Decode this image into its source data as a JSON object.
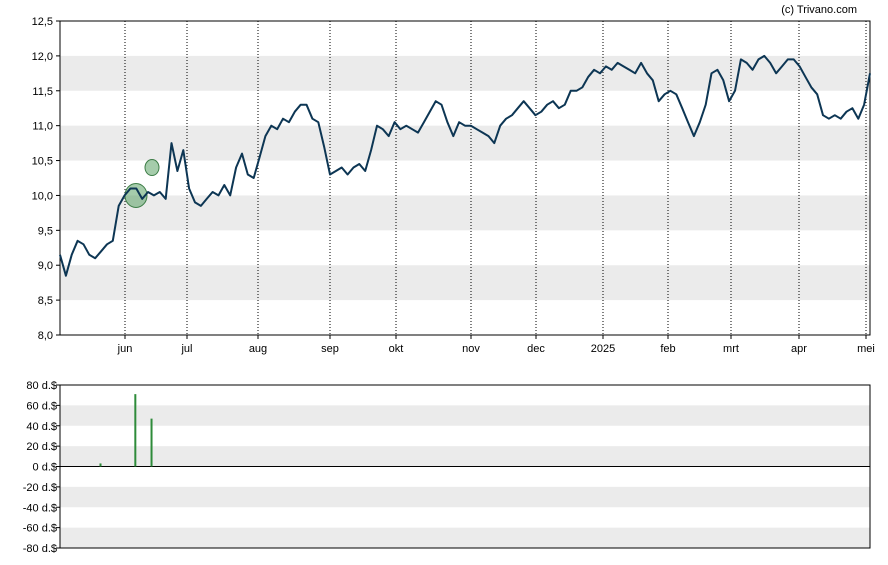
{
  "credit": "(c) Trivano.com",
  "chart_data": [
    {
      "type": "line",
      "ylim": [
        8.0,
        12.5
      ],
      "y_ticks": [
        "8,0",
        "8,5",
        "9,0",
        "9,5",
        "10,0",
        "10,5",
        "11,0",
        "11,5",
        "12,0",
        "12,5"
      ],
      "x_labels": [
        "jun",
        "jul",
        "aug",
        "sep",
        "okt",
        "nov",
        "dec",
        "2025",
        "feb",
        "mrt",
        "apr",
        "mei"
      ],
      "grid": "alternating horizontal bands, dotted vertical month lines",
      "line_color": "#0d3654",
      "series": [
        {
          "values": [
            9.15,
            8.85,
            9.15,
            9.35,
            9.3,
            9.15,
            9.1,
            9.2,
            9.3,
            9.35,
            9.85,
            10.0,
            10.1,
            10.1,
            9.95,
            10.05,
            10.0,
            10.05,
            9.95,
            10.75,
            10.35,
            10.65,
            10.1,
            9.9,
            9.85,
            9.95,
            10.05,
            10.0,
            10.15,
            10.0,
            10.4,
            10.6,
            10.3,
            10.25,
            10.55,
            10.85,
            11.0,
            10.95,
            11.1,
            11.05,
            11.2,
            11.3,
            11.3,
            11.1,
            11.05,
            10.7,
            10.3,
            10.35,
            10.4,
            10.3,
            10.4,
            10.45,
            10.35,
            10.65,
            11.0,
            10.95,
            10.85,
            11.05,
            10.95,
            11.0,
            10.95,
            10.9,
            11.05,
            11.2,
            11.35,
            11.3,
            11.05,
            10.85,
            11.05,
            11.0,
            11.0,
            10.95,
            10.9,
            10.85,
            10.75,
            11.0,
            11.1,
            11.15,
            11.25,
            11.35,
            11.25,
            11.15,
            11.2,
            11.3,
            11.35,
            11.25,
            11.3,
            11.5,
            11.5,
            11.55,
            11.7,
            11.8,
            11.75,
            11.85,
            11.8,
            11.9,
            11.85,
            11.8,
            11.75,
            11.9,
            11.75,
            11.65,
            11.35,
            11.45,
            11.5,
            11.45,
            11.25,
            11.05,
            10.85,
            11.05,
            11.3,
            11.75,
            11.8,
            11.65,
            11.35,
            11.5,
            11.95,
            11.9,
            11.8,
            11.95,
            12.0,
            11.9,
            11.75,
            11.85,
            11.95,
            11.95,
            11.85,
            11.7,
            11.55,
            11.45,
            11.15,
            11.1,
            11.15,
            11.1,
            11.2,
            11.25,
            11.1,
            11.3,
            11.75
          ],
          "markers": [
            "lower circle at 10.0 in mid-June",
            "upper circle at 10.4 in mid-June"
          ]
        }
      ]
    },
    {
      "type": "bar",
      "ylim": [
        -80,
        80
      ],
      "y_ticks": [
        "80 d.$",
        "60 d.$",
        "40 d.$",
        "20 d.$",
        "0 d.$",
        "-20 d.$",
        "-40 d.$",
        "-60 d.$",
        "-80 d.$"
      ],
      "bar_color": "#2e8b3a",
      "series": [
        {
          "positions": [
            0.05,
            0.093,
            0.113
          ],
          "values": [
            3,
            71,
            47
          ]
        }
      ]
    }
  ]
}
